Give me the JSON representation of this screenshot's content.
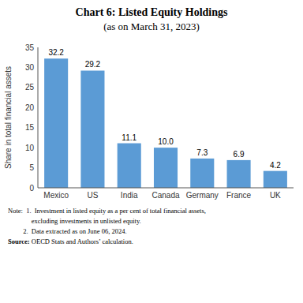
{
  "chart_data": {
    "type": "bar",
    "title": "Chart 6: Listed Equity Holdings",
    "subtitle": "(as on March 31, 2023)",
    "categories": [
      "Mexico",
      "US",
      "India",
      "Canada",
      "Germany",
      "France",
      "UK"
    ],
    "values": [
      32.2,
      29.2,
      11.1,
      10.0,
      7.3,
      6.9,
      4.2
    ],
    "value_labels": [
      "32.2",
      "29.2",
      "11.1",
      "10.0",
      "7.3",
      "6.9",
      "4.2"
    ],
    "data_labels": true,
    "color": "#5b9bd5",
    "ylabel": "Share in total financial assets",
    "ylim": [
      0,
      35
    ],
    "yticks": [
      0,
      5,
      10,
      15,
      20,
      25,
      30,
      35
    ],
    "grid": false,
    "annotations": [
      "Note:  1.  Investment in listed equity as a per cent of total financial assets,",
      "              excluding investments in unlisted equity.",
      "         2.  Data extracted as on June 06, 2024."
    ],
    "source": "Source: OECD Stats and Authors’ calculation."
  }
}
